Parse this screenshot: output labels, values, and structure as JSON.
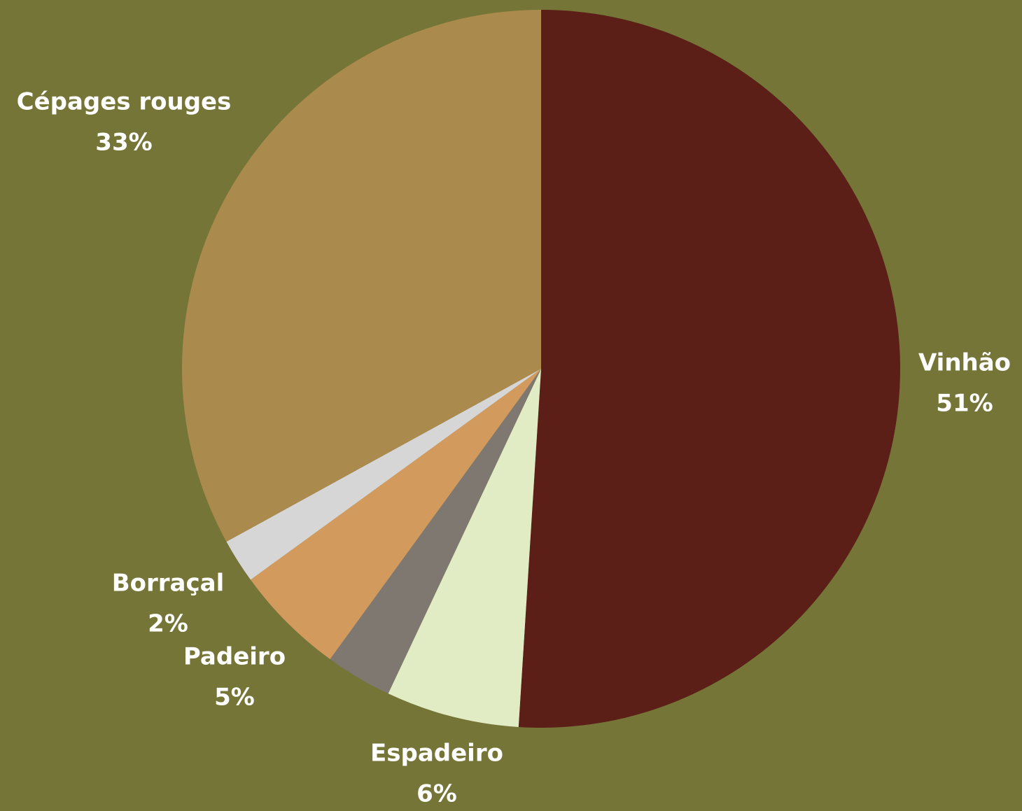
{
  "chart_data": {
    "type": "pie",
    "categories": [
      "Vinhão",
      "Espadeiro",
      null,
      "Padeiro",
      "Borraçal",
      "Cépages rouges"
    ],
    "values": [
      51,
      6,
      3,
      5,
      2,
      33
    ],
    "value_labels": [
      "51%",
      "6%",
      null,
      "5%",
      "2%",
      "33%"
    ],
    "colors": [
      "#5c1f18",
      "#e2ecc4",
      "#7f7870",
      "#d39a5e",
      "#d6d6d6",
      "#ab8a4e"
    ],
    "background": "#757538"
  }
}
